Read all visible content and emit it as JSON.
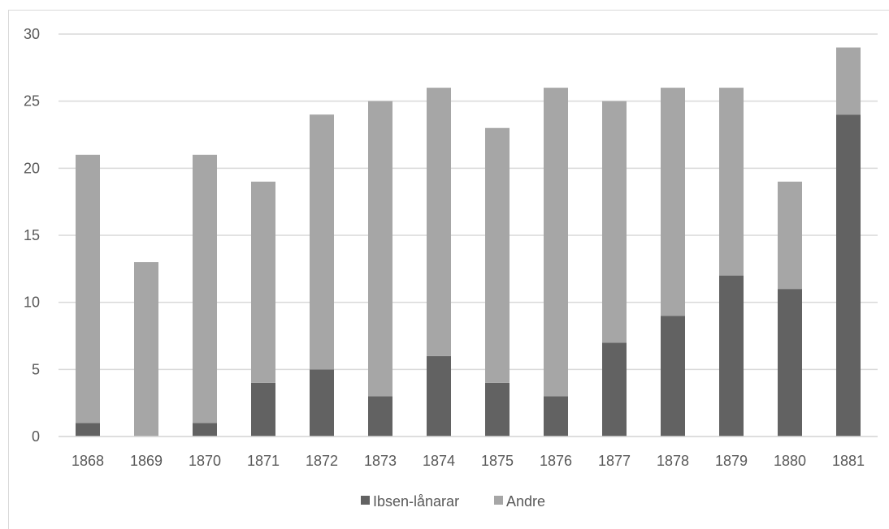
{
  "chart_data": {
    "type": "bar",
    "stacked": true,
    "categories": [
      "1868",
      "1869",
      "1870",
      "1871",
      "1872",
      "1873",
      "1874",
      "1875",
      "1876",
      "1877",
      "1878",
      "1879",
      "1880",
      "1881"
    ],
    "series": [
      {
        "name": "Ibsen-lånarar",
        "color": "#626262",
        "values": [
          1,
          0,
          1,
          4,
          5,
          3,
          6,
          4,
          3,
          7,
          9,
          12,
          11,
          24
        ]
      },
      {
        "name": "Andre",
        "color": "#a6a6a6",
        "values": [
          20,
          13,
          20,
          15,
          19,
          22,
          20,
          19,
          23,
          18,
          17,
          14,
          8,
          5
        ]
      }
    ],
    "yticks": [
      "0",
      "5",
      "10",
      "15",
      "20",
      "25",
      "30"
    ],
    "ylim": [
      0,
      30
    ],
    "grid": true,
    "legend": "bottom"
  }
}
